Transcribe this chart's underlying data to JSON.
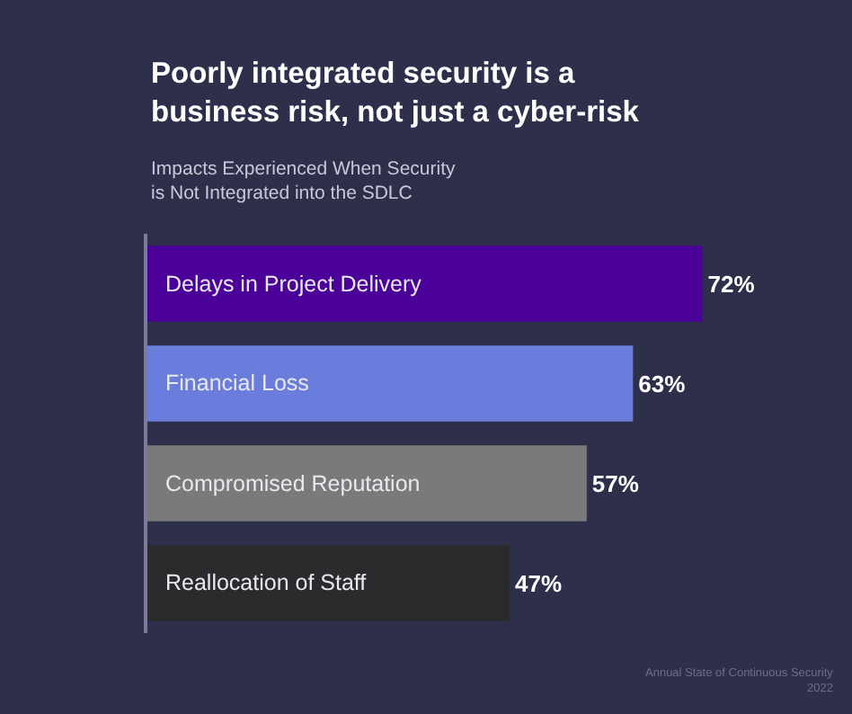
{
  "chart_data": {
    "type": "bar",
    "orientation": "horizontal",
    "title": "Poorly integrated security is a business risk, not just a cyber-risk",
    "subtitle": "Impacts Experienced When Security is Not Integrated into the SDLC",
    "categories": [
      "Delays in Project Delivery",
      "Financial Loss",
      "Compromised Reputation",
      "Reallocation of Staff"
    ],
    "values": [
      72,
      63,
      57,
      47
    ],
    "colors": [
      "#4a0099",
      "#6a7ddc",
      "#7a7a7a",
      "#2b2b2d"
    ],
    "value_labels": [
      "72%",
      "63%",
      "57%",
      "47%"
    ],
    "tick_labels": false,
    "grid": false,
    "legend": false,
    "annotations": [
      "Annual State of Continuous Security\n2022"
    ]
  }
}
